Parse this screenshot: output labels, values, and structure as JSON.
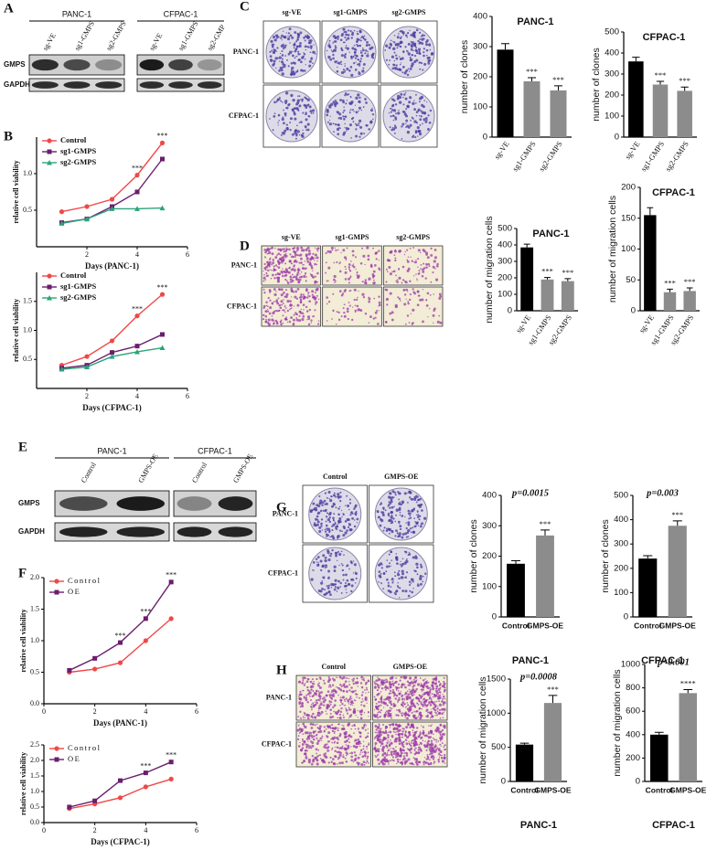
{
  "figure": {
    "panel_labels": [
      "A",
      "B",
      "C",
      "D",
      "E",
      "F",
      "G",
      "H"
    ],
    "blot_a": {
      "groups": [
        "PANC-1",
        "CFPAC-1"
      ],
      "lanes": [
        "sg-VE",
        "sg1-GMPS",
        "sg2-GMPS",
        "sg-VE",
        "sg1-GMPS",
        "sg2-GMP"
      ],
      "rows": [
        "GMPS",
        "GAPDH"
      ]
    },
    "blot_e": {
      "groups": [
        "PANC-1",
        "CFPAC-1"
      ],
      "lanes": [
        "Control",
        "GMPS-OE",
        "Control",
        "GMPS-OE"
      ],
      "rows": [
        "GMPS",
        "GAPDH"
      ]
    },
    "colony_c": {
      "columns": [
        "sg-VE",
        "sg1-GMPS",
        "sg2-GMPS"
      ],
      "rows": [
        "PANC-1",
        "CFPAC-1"
      ]
    },
    "migration_d": {
      "columns": [
        "sg-VE",
        "sg1-GMPS",
        "sg2-GMPS"
      ],
      "rows": [
        "PANC-1",
        "CFPAC-1"
      ]
    },
    "colony_g": {
      "columns": [
        "Control",
        "GMPS-OE"
      ],
      "rows": [
        "PANC-1",
        "CFPAC-1"
      ]
    },
    "migration_h": {
      "columns": [
        "Control",
        "GMPS-OE"
      ],
      "rows": [
        "PANC-1",
        "CFPAC-1"
      ]
    }
  },
  "chart_data": [
    {
      "type": "line",
      "x_label": "Days (PANC-1)",
      "y_label": "relative cell viability",
      "x": [
        1,
        2,
        3,
        4,
        5
      ],
      "xlim": [
        0,
        6
      ],
      "xticks": [
        2,
        4,
        6
      ],
      "ylim": [
        0,
        1.5
      ],
      "yticks": [
        {
          "value": 0.5,
          "label": "0.5"
        },
        {
          "value": 1,
          "label": "1.0"
        }
      ],
      "series": [
        {
          "name": "Control",
          "color": "#f04848",
          "marker": "circle",
          "values": [
            0.48,
            0.55,
            0.65,
            0.98,
            1.42
          ]
        },
        {
          "name": "sg1-GMPS",
          "color": "#6a1e6e",
          "marker": "square",
          "values": [
            0.33,
            0.38,
            0.55,
            0.75,
            1.2
          ]
        },
        {
          "name": "sg2-GMPS",
          "color": "#2aa57a",
          "marker": "triangle",
          "values": [
            0.32,
            0.38,
            0.52,
            0.52,
            0.53
          ]
        }
      ],
      "annotations": [
        {
          "x": 4,
          "text": "***"
        },
        {
          "x": 5,
          "text": "***"
        }
      ]
    },
    {
      "type": "line",
      "x_label": "Days (CFPAC-1)",
      "y_label": "relative cell viability",
      "x": [
        1,
        2,
        3,
        4,
        5
      ],
      "xlim": [
        0,
        6
      ],
      "xticks": [
        2,
        4,
        6
      ],
      "ylim": [
        0,
        2
      ],
      "yticks": [
        {
          "value": 0.5,
          "label": "0.5"
        },
        {
          "value": 1,
          "label": "1.0"
        },
        {
          "value": 1.5,
          "label": "1.5"
        }
      ],
      "series": [
        {
          "name": "Control",
          "color": "#f04848",
          "marker": "circle",
          "values": [
            0.4,
            0.55,
            0.82,
            1.25,
            1.62
          ]
        },
        {
          "name": "sg1-GMPS",
          "color": "#6a1e6e",
          "marker": "square",
          "values": [
            0.35,
            0.4,
            0.62,
            0.73,
            0.93
          ]
        },
        {
          "name": "sg2-GMPS",
          "color": "#2aa57a",
          "marker": "triangle",
          "values": [
            0.33,
            0.37,
            0.55,
            0.63,
            0.7
          ]
        }
      ],
      "annotations": [
        {
          "x": 4,
          "text": "***"
        },
        {
          "x": 5,
          "text": "***"
        }
      ]
    },
    {
      "type": "bar",
      "title": "PANC-1",
      "y_label": "number of clones",
      "categories": [
        "sg-VE",
        "sg1-GMPS",
        "sg2-GMPS"
      ],
      "values": [
        290,
        185,
        155
      ],
      "errors": [
        20,
        12,
        15
      ],
      "colors": [
        "#000000",
        "#8c8c8c",
        "#8c8c8c"
      ],
      "ylim": [
        0,
        400
      ],
      "yticks": [
        0,
        100,
        200,
        300,
        400
      ],
      "annotations": [
        {
          "category": "sg1-GMPS",
          "text": "***"
        },
        {
          "category": "sg2-GMPS",
          "text": "***"
        }
      ]
    },
    {
      "type": "bar",
      "title": "CFPAC-1",
      "y_label": "number of clones",
      "categories": [
        "sg-VE",
        "sg1-GMPS",
        "sg2-GMPS"
      ],
      "values": [
        360,
        250,
        220
      ],
      "errors": [
        20,
        15,
        18
      ],
      "colors": [
        "#000000",
        "#8c8c8c",
        "#8c8c8c"
      ],
      "ylim": [
        0,
        500
      ],
      "yticks": [
        0,
        100,
        200,
        300,
        400,
        500
      ],
      "annotations": [
        {
          "category": "sg1-GMPS",
          "text": "***"
        },
        {
          "category": "sg2-GMPS",
          "text": "***"
        }
      ]
    },
    {
      "type": "bar",
      "title": "PANC-1",
      "y_label": "number of migration cells",
      "categories": [
        "sg-VE",
        "sg1-GMPS",
        "sg2-GMPS"
      ],
      "values": [
        385,
        190,
        180
      ],
      "errors": [
        20,
        12,
        15
      ],
      "colors": [
        "#000000",
        "#8c8c8c",
        "#8c8c8c"
      ],
      "ylim": [
        0,
        500
      ],
      "yticks": [
        0,
        100,
        200,
        300,
        400,
        500
      ],
      "annotations": [
        {
          "category": "sg1-GMPS",
          "text": "***"
        },
        {
          "category": "sg2-GMPS",
          "text": "***"
        }
      ]
    },
    {
      "type": "bar",
      "title": "CFPAC-1",
      "y_label": "number of migration cells",
      "categories": [
        "sg-VE",
        "sg1-GMPS",
        "sg2-GMPS"
      ],
      "values": [
        155,
        30,
        32
      ],
      "errors": [
        12,
        5,
        5
      ],
      "colors": [
        "#000000",
        "#8c8c8c",
        "#8c8c8c"
      ],
      "ylim": [
        0,
        200
      ],
      "yticks": [
        0,
        50,
        100,
        150,
        200
      ],
      "annotations": [
        {
          "category": "sg1-GMPS",
          "text": "***"
        },
        {
          "category": "sg2-GMPS",
          "text": "***"
        }
      ]
    },
    {
      "type": "line",
      "x_label": "Days (PANC-1)",
      "y_label": "relative cell viability",
      "x": [
        1,
        2,
        3,
        4,
        5
      ],
      "xlim": [
        0,
        6
      ],
      "xticks": [
        0,
        2,
        4,
        6
      ],
      "ylim": [
        0,
        2
      ],
      "yticks": [
        {
          "value": 0,
          "label": "0.0"
        },
        {
          "value": 0.5,
          "label": "0.5"
        },
        {
          "value": 1,
          "label": "1.0"
        },
        {
          "value": 1.5,
          "label": "1.5"
        },
        {
          "value": 2,
          "label": "2.0"
        }
      ],
      "series": [
        {
          "name": "Control",
          "color": "#f04848",
          "marker": "circle",
          "values": [
            0.5,
            0.55,
            0.65,
            1.0,
            1.35
          ]
        },
        {
          "name": "OE",
          "color": "#6a1e6e",
          "marker": "square",
          "values": [
            0.53,
            0.72,
            0.97,
            1.35,
            1.93
          ]
        }
      ],
      "annotations": [
        {
          "x": 3,
          "text": "***"
        },
        {
          "x": 4,
          "text": "***"
        },
        {
          "x": 5,
          "text": "***"
        }
      ]
    },
    {
      "type": "line",
      "x_label": "Days (CFPAC-1)",
      "y_label": "relative cell viability",
      "x": [
        1,
        2,
        3,
        4,
        5
      ],
      "xlim": [
        0,
        6
      ],
      "xticks": [
        0,
        2,
        4,
        6
      ],
      "ylim": [
        0,
        2.5
      ],
      "yticks": [
        {
          "value": 0,
          "label": "0.0"
        },
        {
          "value": 0.5,
          "label": "0.5"
        },
        {
          "value": 1,
          "label": "1.0"
        },
        {
          "value": 1.5,
          "label": "1.5"
        },
        {
          "value": 2,
          "label": "2.0"
        },
        {
          "value": 2.5,
          "label": "2.5"
        }
      ],
      "series": [
        {
          "name": "Control",
          "color": "#f04848",
          "marker": "circle",
          "values": [
            0.45,
            0.6,
            0.8,
            1.15,
            1.4
          ]
        },
        {
          "name": "OE",
          "color": "#6a1e6e",
          "marker": "square",
          "values": [
            0.5,
            0.7,
            1.35,
            1.6,
            1.95
          ]
        }
      ],
      "annotations": [
        {
          "x": 4,
          "text": "***"
        },
        {
          "x": 5,
          "text": "***"
        }
      ]
    },
    {
      "type": "bar",
      "title": "PANC-1",
      "y_label": "number of clones",
      "categories": [
        "Control",
        "GMPS-OE"
      ],
      "values": [
        175,
        268
      ],
      "errors": [
        10,
        18
      ],
      "colors": [
        "#000000",
        "#8c8c8c"
      ],
      "ylim": [
        0,
        400
      ],
      "yticks": [
        0,
        100,
        200,
        300,
        400
      ],
      "p_value": "p=0.0015",
      "annotations": [
        {
          "category": "GMPS-OE",
          "text": "***"
        }
      ]
    },
    {
      "type": "bar",
      "title": "CFPAC-1",
      "y_label": "number of clones",
      "categories": [
        "Control",
        "GMPS-OE"
      ],
      "values": [
        240,
        375
      ],
      "errors": [
        12,
        20
      ],
      "colors": [
        "#000000",
        "#8c8c8c"
      ],
      "ylim": [
        0,
        500
      ],
      "yticks": [
        0,
        100,
        200,
        300,
        400,
        500
      ],
      "p_value": "p=0.003",
      "annotations": [
        {
          "category": "GMPS-OE",
          "text": "***"
        }
      ]
    },
    {
      "type": "bar",
      "title": "PANC-1",
      "y_label": "number of migration cells",
      "categories": [
        "Control",
        "GMPS-OE"
      ],
      "values": [
        540,
        1150
      ],
      "errors": [
        20,
        110
      ],
      "colors": [
        "#000000",
        "#8c8c8c"
      ],
      "ylim": [
        0,
        1500
      ],
      "yticks": [
        0,
        500,
        1000,
        1500
      ],
      "p_value": "p=0.0008",
      "annotations": [
        {
          "category": "GMPS-OE",
          "text": "***"
        }
      ]
    },
    {
      "type": "bar",
      "title": "CFPAC-1",
      "y_label": "number of migration cells",
      "categories": [
        "Control",
        "GMPS-OE"
      ],
      "values": [
        400,
        755
      ],
      "errors": [
        20,
        30
      ],
      "colors": [
        "#000000",
        "#8c8c8c"
      ],
      "ylim": [
        0,
        1000
      ],
      "yticks": [
        0,
        200,
        400,
        600,
        800,
        1000
      ],
      "p_value": "p<0.001",
      "annotations": [
        {
          "category": "GMPS-OE",
          "text": "****"
        }
      ]
    }
  ]
}
